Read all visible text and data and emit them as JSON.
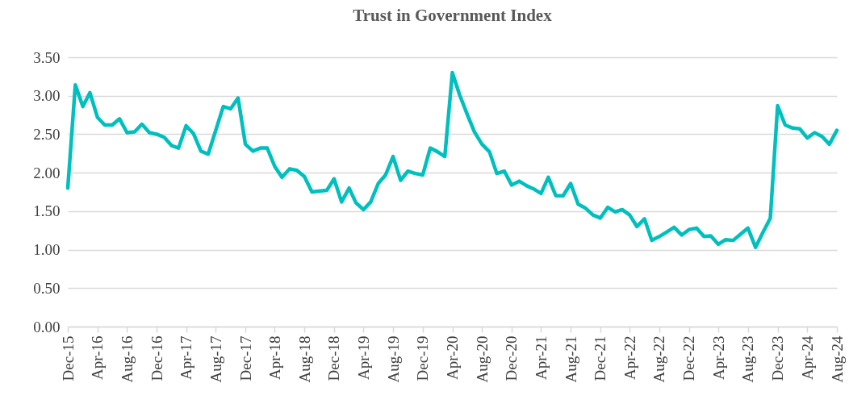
{
  "chart_data": {
    "type": "line",
    "title": "Trust in Government Index",
    "x": [
      "2015-12",
      "2016-01",
      "2016-02",
      "2016-03",
      "2016-04",
      "2016-05",
      "2016-06",
      "2016-07",
      "2016-08",
      "2016-09",
      "2016-10",
      "2016-11",
      "2016-12",
      "2017-01",
      "2017-02",
      "2017-03",
      "2017-04",
      "2017-05",
      "2017-06",
      "2017-07",
      "2017-08",
      "2017-09",
      "2017-10",
      "2017-11",
      "2017-12",
      "2018-01",
      "2018-02",
      "2018-03",
      "2018-04",
      "2018-05",
      "2018-06",
      "2018-07",
      "2018-08",
      "2018-09",
      "2018-10",
      "2018-11",
      "2018-12",
      "2019-01",
      "2019-02",
      "2019-03",
      "2019-04",
      "2019-05",
      "2019-06",
      "2019-07",
      "2019-08",
      "2019-09",
      "2019-10",
      "2019-11",
      "2019-12",
      "2020-01",
      "2020-02",
      "2020-03",
      "2020-04",
      "2020-05",
      "2020-06",
      "2020-07",
      "2020-08",
      "2020-09",
      "2020-10",
      "2020-11",
      "2020-12",
      "2021-01",
      "2021-02",
      "2021-03",
      "2021-04",
      "2021-05",
      "2021-06",
      "2021-07",
      "2021-08",
      "2021-09",
      "2021-10",
      "2021-11",
      "2021-12",
      "2022-01",
      "2022-02",
      "2022-03",
      "2022-04",
      "2022-05",
      "2022-06",
      "2022-07",
      "2022-08",
      "2022-09",
      "2022-10",
      "2022-11",
      "2022-12",
      "2023-01",
      "2023-02",
      "2023-03",
      "2023-04",
      "2023-05",
      "2023-06",
      "2023-07",
      "2023-08",
      "2023-09",
      "2023-10",
      "2023-11",
      "2023-12",
      "2024-01",
      "2024-02",
      "2024-03",
      "2024-04",
      "2024-05",
      "2024-06",
      "2024-07",
      "2024-08"
    ],
    "series": [
      {
        "color": "#00bfbf",
        "values": [
          1.8,
          3.14,
          2.86,
          3.04,
          2.72,
          2.62,
          2.62,
          2.7,
          2.52,
          2.53,
          2.63,
          2.52,
          2.5,
          2.46,
          2.35,
          2.32,
          2.61,
          2.51,
          2.28,
          2.24,
          2.55,
          2.86,
          2.83,
          2.97,
          2.37,
          2.28,
          2.32,
          2.32,
          2.08,
          1.94,
          2.05,
          2.03,
          1.95,
          1.75,
          1.76,
          1.77,
          1.92,
          1.62,
          1.8,
          1.61,
          1.52,
          1.62,
          1.86,
          1.97,
          2.21,
          1.9,
          2.02,
          1.99,
          1.97,
          2.32,
          2.27,
          2.21,
          3.3,
          3.01,
          2.76,
          2.53,
          2.37,
          2.27,
          1.99,
          2.02,
          1.84,
          1.89,
          1.83,
          1.79,
          1.73,
          1.94,
          1.7,
          1.7,
          1.86,
          1.59,
          1.54,
          1.45,
          1.41,
          1.55,
          1.49,
          1.52,
          1.45,
          1.3,
          1.4,
          1.12,
          1.17,
          1.23,
          1.29,
          1.19,
          1.26,
          1.28,
          1.17,
          1.18,
          1.07,
          1.13,
          1.12,
          1.2,
          1.28,
          1.03,
          1.22,
          1.41,
          2.87,
          2.62,
          2.58,
          2.57,
          2.45,
          2.52,
          2.47,
          2.37,
          2.55
        ]
      }
    ],
    "xlim": [
      "2015-12",
      "2024-08"
    ],
    "xticks": [
      {
        "value": "2015-12",
        "label": "Dec-15"
      },
      {
        "value": "2016-04",
        "label": "Apr-16"
      },
      {
        "value": "2016-08",
        "label": "Aug-16"
      },
      {
        "value": "2016-12",
        "label": "Dec-16"
      },
      {
        "value": "2017-04",
        "label": "Apr-17"
      },
      {
        "value": "2017-08",
        "label": "Aug-17"
      },
      {
        "value": "2017-12",
        "label": "Dec-17"
      },
      {
        "value": "2018-04",
        "label": "Apr-18"
      },
      {
        "value": "2018-08",
        "label": "Aug-18"
      },
      {
        "value": "2018-12",
        "label": "Dec-18"
      },
      {
        "value": "2019-04",
        "label": "Apr-19"
      },
      {
        "value": "2019-08",
        "label": "Aug-19"
      },
      {
        "value": "2019-12",
        "label": "Dec-19"
      },
      {
        "value": "2020-04",
        "label": "Apr-20"
      },
      {
        "value": "2020-08",
        "label": "Aug-20"
      },
      {
        "value": "2020-12",
        "label": "Dec-20"
      },
      {
        "value": "2021-04",
        "label": "Apr-21"
      },
      {
        "value": "2021-08",
        "label": "Aug-21"
      },
      {
        "value": "2021-12",
        "label": "Dec-21"
      },
      {
        "value": "2022-04",
        "label": "Apr-22"
      },
      {
        "value": "2022-08",
        "label": "Aug-22"
      },
      {
        "value": "2022-12",
        "label": "Dec-22"
      },
      {
        "value": "2023-04",
        "label": "Apr-23"
      },
      {
        "value": "2023-08",
        "label": "Aug-23"
      },
      {
        "value": "2023-12",
        "label": "Dec-23"
      },
      {
        "value": "2024-04",
        "label": "Apr-24"
      },
      {
        "value": "2024-08",
        "label": "Aug-24"
      }
    ],
    "ylim": [
      0,
      3.5
    ],
    "yticks": [
      {
        "value": 0,
        "label": "0.00"
      },
      {
        "value": 0.5,
        "label": "0.50"
      },
      {
        "value": 1,
        "label": "1.00"
      },
      {
        "value": 1.5,
        "label": "1.50"
      },
      {
        "value": 2,
        "label": "2.00"
      },
      {
        "value": 2.5,
        "label": "2.50"
      },
      {
        "value": 3,
        "label": "3.00"
      },
      {
        "value": 3.5,
        "label": "3.50"
      }
    ],
    "grid": "y",
    "marker": "none",
    "line_style": "solid"
  }
}
